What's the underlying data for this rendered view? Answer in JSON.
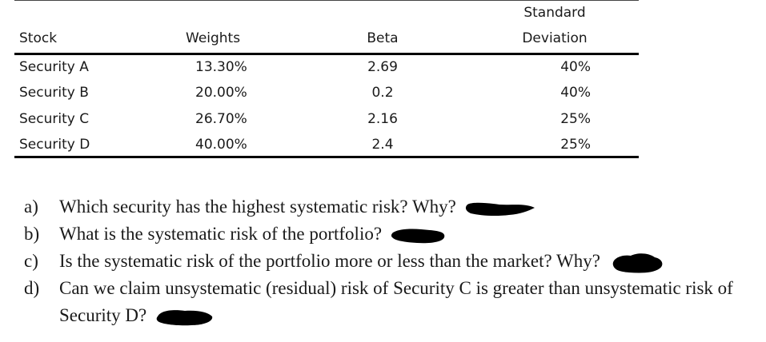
{
  "table": {
    "headers": {
      "stock": "Stock",
      "weights": "Weights",
      "beta": "Beta",
      "sd_line1": "Standard",
      "sd_line2": "Deviation"
    },
    "rows": [
      {
        "stock": "Security A",
        "weight": "13.30%",
        "beta": "2.69",
        "sd": "40%"
      },
      {
        "stock": "Security B",
        "weight": "20.00%",
        "beta": "0.2",
        "sd": "40%"
      },
      {
        "stock": "Security C",
        "weight": "26.70%",
        "beta": "2.16",
        "sd": "25%"
      },
      {
        "stock": "Security D",
        "weight": "40.00%",
        "beta": "2.4",
        "sd": "25%"
      }
    ]
  },
  "questions": [
    {
      "letter": "a)",
      "text": "Which security has the highest systematic risk? Why?"
    },
    {
      "letter": "b)",
      "text": "What is the systematic risk of the portfolio?"
    },
    {
      "letter": "c)",
      "text": "Is the systematic risk of the portfolio more or less than the market? Why?"
    },
    {
      "letter": "d)",
      "text": "Can we claim unsystematic (residual) risk of Security C is greater than unsystematic risk of Security D?"
    }
  ]
}
